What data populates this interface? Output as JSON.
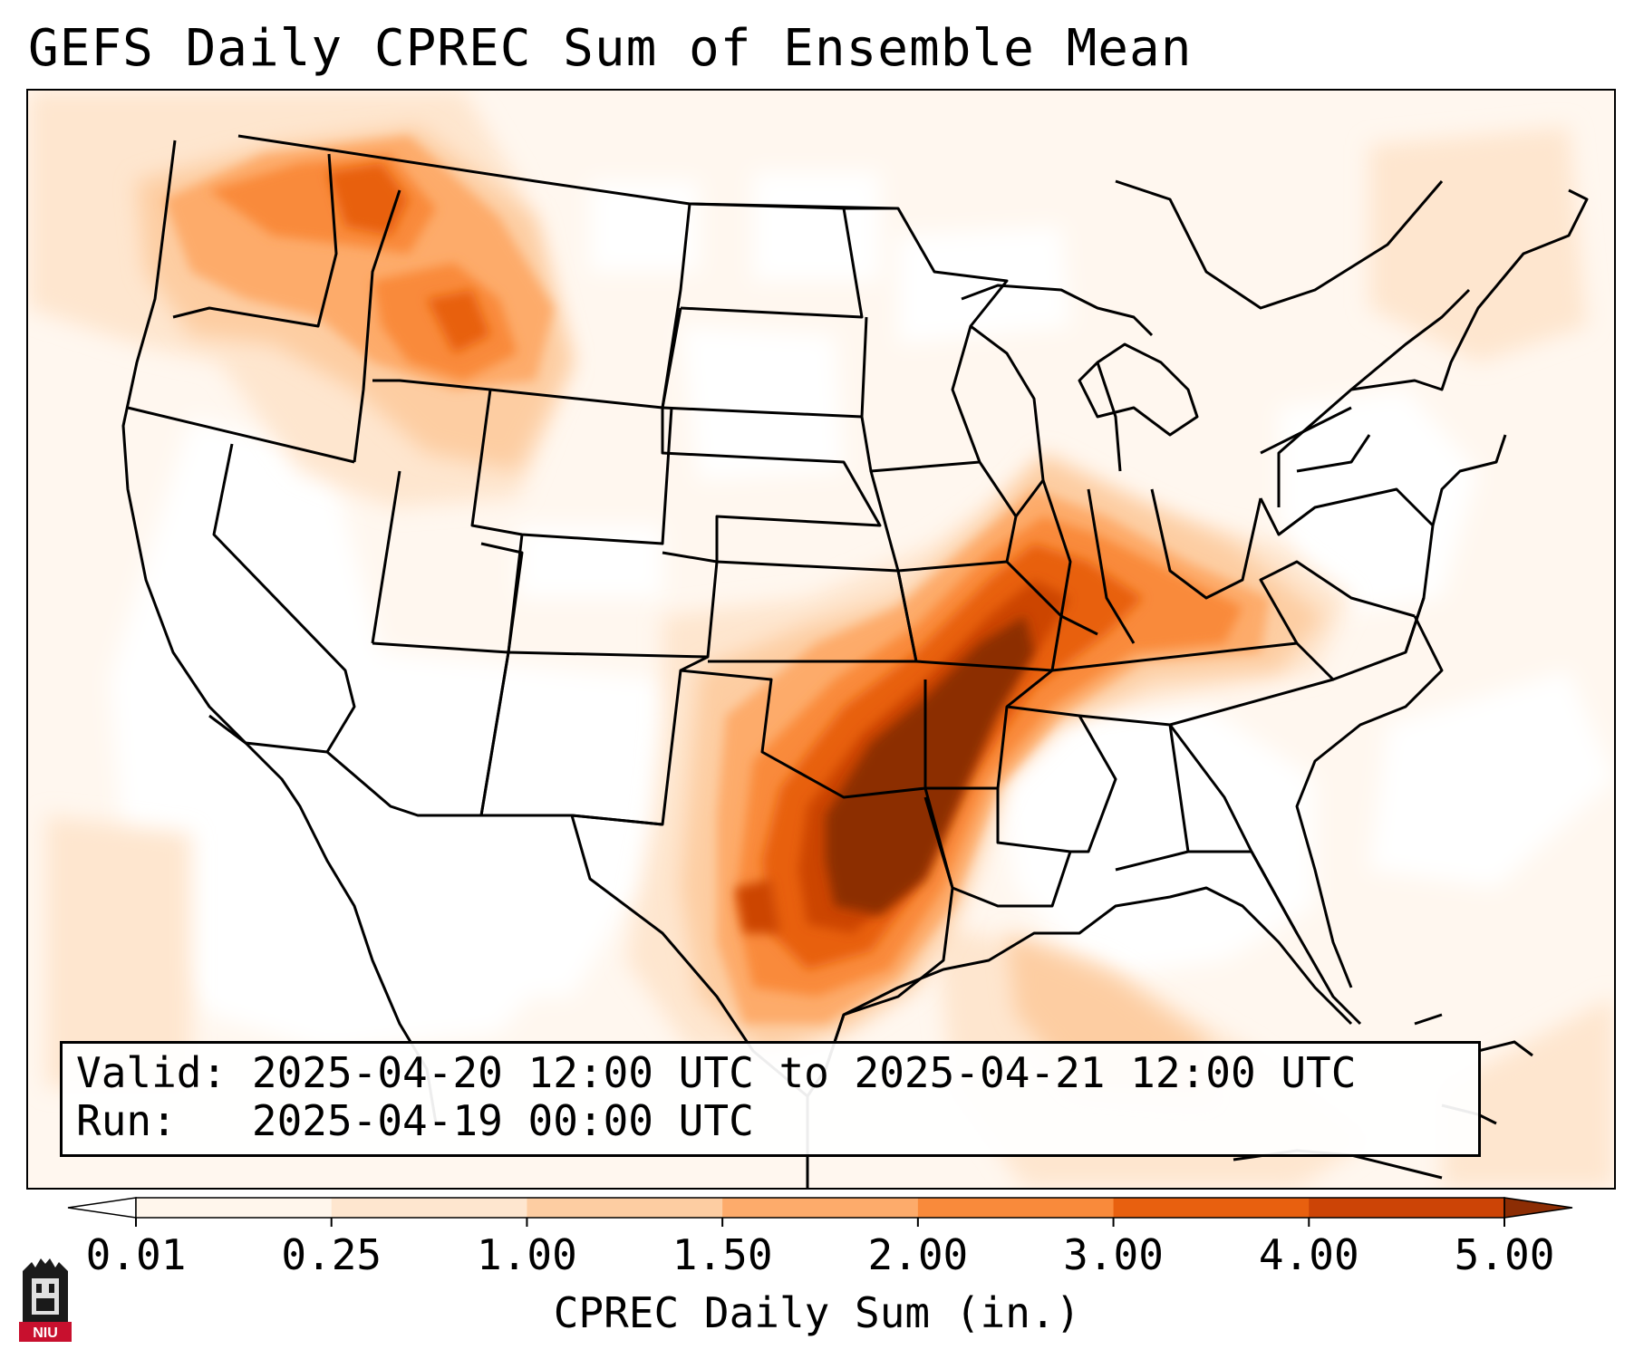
{
  "title": "GEFS Daily CPREC Sum of Ensemble Mean",
  "info_box": {
    "valid_label": "Valid:",
    "valid_value": "2025-04-20 12:00 UTC to 2025-04-21 12:00 UTC",
    "run_label": "Run:",
    "run_value": "2025-04-19 00:00 UTC"
  },
  "colorbar": {
    "label": "CPREC Daily Sum (in.)",
    "ticks": [
      "0.01",
      "0.25",
      "1.00",
      "1.50",
      "2.00",
      "3.00",
      "4.00",
      "5.00"
    ],
    "colors": [
      "#fff6ec",
      "#fee6cf",
      "#fdcda2",
      "#fdab6b",
      "#f98a3b",
      "#e8600f",
      "#cc4406",
      "#8c2d04"
    ],
    "under_color": "#ffffff",
    "over_color": "#8c2d04"
  },
  "logo": {
    "text": "NIU",
    "color": "#c8102e"
  },
  "map": {
    "type": "precipitation-map",
    "region": "Contiguous United States",
    "variable": "CPREC",
    "units": "in.",
    "max_rainfall_regions": [
      "Arkansas",
      "eastern Oklahoma",
      "east Texas",
      "southern Missouri",
      "western Tennessee"
    ]
  }
}
